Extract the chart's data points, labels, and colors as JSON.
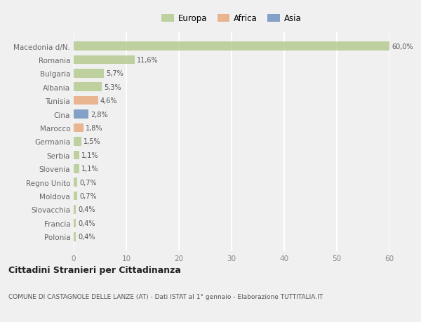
{
  "categories": [
    "Macedonia d/N.",
    "Romania",
    "Bulgaria",
    "Albania",
    "Tunisia",
    "Cina",
    "Marocco",
    "Germania",
    "Serbia",
    "Slovenia",
    "Regno Unito",
    "Moldova",
    "Slovacchia",
    "Francia",
    "Polonia"
  ],
  "values": [
    60.0,
    11.6,
    5.7,
    5.3,
    4.6,
    2.8,
    1.8,
    1.5,
    1.1,
    1.1,
    0.7,
    0.7,
    0.4,
    0.4,
    0.4
  ],
  "labels": [
    "60,0%",
    "11,6%",
    "5,7%",
    "5,3%",
    "4,6%",
    "2,8%",
    "1,8%",
    "1,5%",
    "1,1%",
    "1,1%",
    "0,7%",
    "0,7%",
    "0,4%",
    "0,4%",
    "0,4%"
  ],
  "colors": [
    "#b5c98e",
    "#b5c98e",
    "#b5c98e",
    "#b5c98e",
    "#e8a87c",
    "#6b8fbf",
    "#e8a87c",
    "#b5c98e",
    "#b5c98e",
    "#b5c98e",
    "#b5c98e",
    "#b5c98e",
    "#b5c98e",
    "#b5c98e",
    "#b5c98e"
  ],
  "legend_labels": [
    "Europa",
    "Africa",
    "Asia"
  ],
  "legend_colors": [
    "#b5c98e",
    "#e8a87c",
    "#6b8fbf"
  ],
  "xlim": [
    0,
    60
  ],
  "xticks": [
    0,
    10,
    20,
    30,
    40,
    50,
    60
  ],
  "title": "Cittadini Stranieri per Cittadinanza",
  "subtitle": "COMUNE DI CASTAGNOLE DELLE LANZE (AT) - Dati ISTAT al 1° gennaio - Elaborazione TUTTITALIA.IT",
  "background_color": "#f0f0f0",
  "grid_color": "#ffffff",
  "bar_height": 0.65
}
